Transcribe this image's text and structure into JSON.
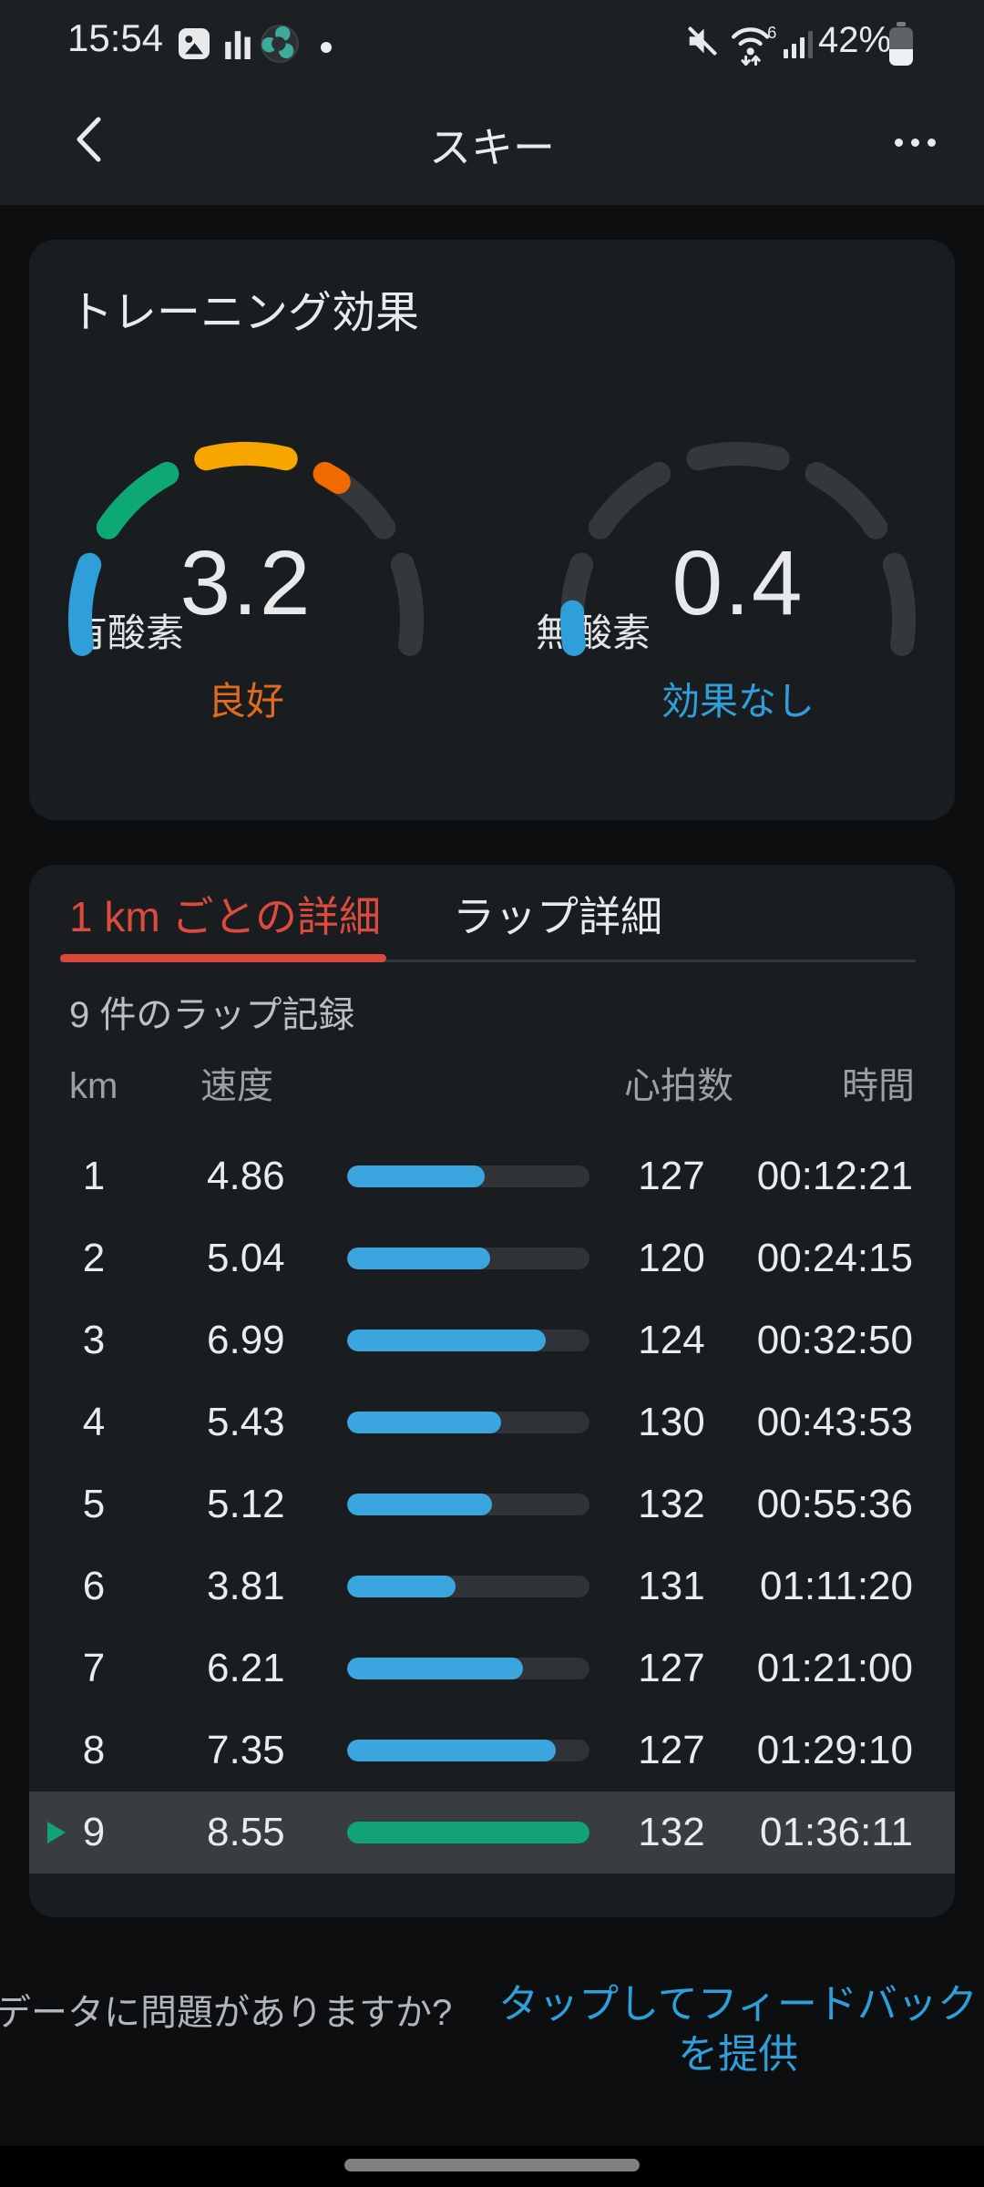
{
  "status_bar": {
    "time": "15:54",
    "battery_percent": "42%",
    "wifi_label": "6",
    "left_icons": [
      "image-icon",
      "stats-icon",
      "sports-icon",
      "notification-dot"
    ],
    "right_icons": [
      "mute-icon",
      "wifi6-icon",
      "signal-icon",
      "battery-icon"
    ]
  },
  "nav_bar": {
    "title": "スキー"
  },
  "training_card": {
    "title": "トレーニング効果",
    "track_color": "#35383b",
    "gauges": [
      {
        "name": "aerobic",
        "label": "有酸素",
        "value": "3.2",
        "max": 5,
        "status": "良好",
        "status_color": "#e06a1e",
        "palette": [
          "#2e9fd9",
          "#0ea875",
          "#f7a600",
          "#f06a00",
          "#f06a00"
        ]
      },
      {
        "name": "anaerobic",
        "label": "無酸素",
        "value": "0.4",
        "max": 5,
        "status": "効果なし",
        "status_color": "#2f9fd9",
        "palette": [
          "#2e9fd9",
          "#0ea875",
          "#f7a600",
          "#f06a00",
          "#f06a00"
        ]
      }
    ]
  },
  "laps_card": {
    "tabs": [
      {
        "label": "1 km ごとの詳細",
        "active": true
      },
      {
        "label": "ラップ詳細",
        "active": false
      }
    ],
    "active_tab_color": "#dd4b3e",
    "summary": "9 件のラップ記録",
    "columns": {
      "km": "km",
      "speed": "速度",
      "heart_rate": "心拍数",
      "time": "時間"
    },
    "max_speed": 8.55,
    "bar_color": "#3aa5de",
    "highlight_bar_color": "#12a277",
    "rows": [
      {
        "km": "1",
        "speed": "4.86",
        "heart_rate": "127",
        "time": "00:12:21"
      },
      {
        "km": "2",
        "speed": "5.04",
        "heart_rate": "120",
        "time": "00:24:15"
      },
      {
        "km": "3",
        "speed": "6.99",
        "heart_rate": "124",
        "time": "00:32:50"
      },
      {
        "km": "4",
        "speed": "5.43",
        "heart_rate": "130",
        "time": "00:43:53"
      },
      {
        "km": "5",
        "speed": "5.12",
        "heart_rate": "132",
        "time": "00:55:36"
      },
      {
        "km": "6",
        "speed": "3.81",
        "heart_rate": "131",
        "time": "01:11:20"
      },
      {
        "km": "7",
        "speed": "6.21",
        "heart_rate": "127",
        "time": "01:21:00"
      },
      {
        "km": "8",
        "speed": "7.35",
        "heart_rate": "127",
        "time": "01:29:10"
      },
      {
        "km": "9",
        "speed": "8.55",
        "heart_rate": "132",
        "time": "01:36:11",
        "highlight": true
      }
    ]
  },
  "footer": {
    "question": "データに問題がありますか?",
    "link": "タップしてフィードバックを提供"
  }
}
